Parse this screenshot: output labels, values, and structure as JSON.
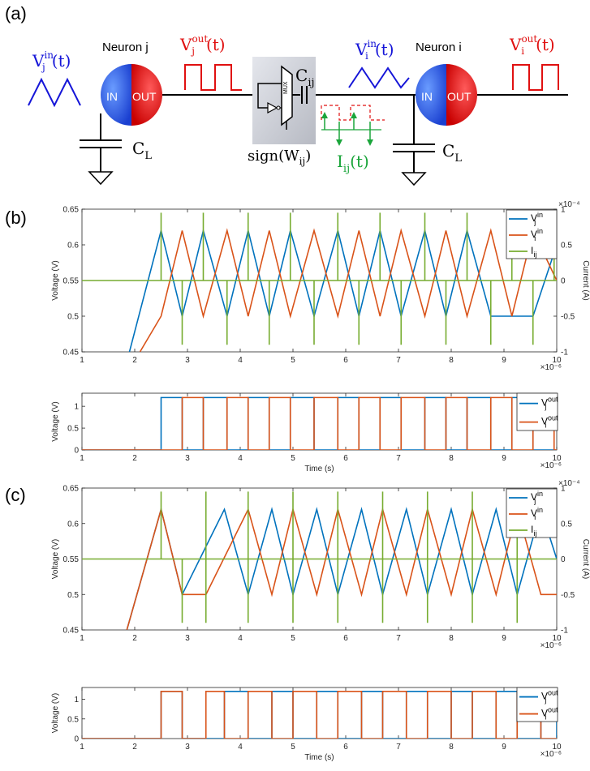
{
  "labels": {
    "a": "(a)",
    "b": "(b)",
    "c": "(c)"
  },
  "circuit": {
    "neuron_j": "Neuron j",
    "neuron_i": "Neuron i",
    "in_text": "IN",
    "out_text": "OUT",
    "mux_text": "MUX",
    "vj_in": {
      "base": "V",
      "sub": "j",
      "sup": "in",
      "arg": "(t)"
    },
    "vj_out": {
      "base": "V",
      "sub": "j",
      "sup": "out",
      "arg": "(t)"
    },
    "vi_in": {
      "base": "V",
      "sub": "i",
      "sup": "in",
      "arg": "(t)"
    },
    "vi_out": {
      "base": "V",
      "sub": "i",
      "sup": "out",
      "arg": "(t)"
    },
    "cij": {
      "base": "C",
      "sub": "ij"
    },
    "cl_left": {
      "base": "C",
      "sub": "L"
    },
    "cl_right": {
      "base": "C",
      "sub": "L"
    },
    "sign": {
      "text": "sign(W",
      "sub": "ij",
      "close": ")"
    },
    "iij": {
      "base": "I",
      "sub": "ij",
      "arg": "(t)"
    },
    "colors": {
      "blue": "#1515d8",
      "red": "#e01010",
      "green": "#1aa53a"
    }
  },
  "chart_data": [
    {
      "panel": "b-top",
      "type": "line",
      "ylabel": "Voltage (V)",
      "y2label": "Current (A)",
      "xlim": [
        1,
        10
      ],
      "ylim": [
        0.45,
        0.65
      ],
      "y2lim": [
        -1,
        1
      ],
      "x_ticks": [
        "1",
        "2",
        "3",
        "4",
        "5",
        "6",
        "7",
        "8",
        "9",
        "10"
      ],
      "y_ticks": [
        "0.45",
        "0.5",
        "0.55",
        "0.6",
        "0.65"
      ],
      "y2_ticks": [
        "-1",
        "-0.5",
        "0",
        "0.5",
        "1"
      ],
      "x_exponent": "×10⁻⁶",
      "y2_exponent": "×10⁻⁴",
      "legend": [
        "V_j^in",
        "V_i^in",
        "I_ij"
      ],
      "series": [
        {
          "name": "V_j^in",
          "color": "#0072BD",
          "peaks": [
            2.5,
            3.3,
            4.15,
            4.95,
            5.85,
            6.65,
            7.5,
            8.3
          ],
          "troughs": [
            2.9,
            3.75,
            4.55,
            5.4,
            6.25,
            7.05,
            7.9,
            8.75,
            9.55
          ],
          "start": [
            1.9,
            0.45
          ],
          "end": [
            10.0,
            0.6
          ]
        },
        {
          "name": "V_i^in",
          "color": "#D95319",
          "peaks": [
            2.9,
            3.75,
            4.55,
            5.4,
            6.25,
            7.05,
            7.9,
            8.75,
            9.55
          ],
          "troughs": [
            2.5,
            3.3,
            4.15,
            4.95,
            5.85,
            6.65,
            7.5,
            8.3,
            9.15
          ],
          "start": [
            2.1,
            0.45
          ],
          "end": [
            10.0,
            0.55
          ]
        },
        {
          "name": "I_ij",
          "color": "#77AC30",
          "pulse_up": [
            2.5,
            3.3,
            4.15,
            4.95,
            5.85,
            6.65,
            7.5,
            8.3,
            9.15,
            9.95
          ],
          "pulse_down": [
            2.9,
            3.75,
            4.55,
            5.4,
            6.25,
            7.05,
            7.9,
            8.75,
            9.55
          ],
          "up_value": 0.95,
          "down_value": -0.9,
          "baseline": 0
        }
      ]
    },
    {
      "panel": "b-bottom",
      "type": "line",
      "ylabel": "Voltage (V)",
      "xlabel": "Time (s)",
      "xlim": [
        1,
        10
      ],
      "ylim": [
        0,
        1.3
      ],
      "x_ticks": [
        "1",
        "2",
        "3",
        "4",
        "5",
        "6",
        "7",
        "8",
        "9",
        "10"
      ],
      "y_ticks": [
        "0",
        "0.5",
        "1"
      ],
      "x_exponent": "×10⁻⁶",
      "legend": [
        "V_j^out",
        "V_i^out"
      ],
      "series": [
        {
          "name": "V_j^out",
          "color": "#0072BD",
          "high": 1.2,
          "pulses": [
            [
              2.5,
              2.9
            ],
            [
              3.3,
              3.75
            ],
            [
              4.15,
              4.55
            ],
            [
              4.95,
              5.4
            ],
            [
              5.85,
              6.25
            ],
            [
              6.65,
              7.05
            ],
            [
              7.5,
              7.9
            ],
            [
              8.3,
              8.75
            ],
            [
              9.15,
              9.55
            ]
          ]
        },
        {
          "name": "V_i^out",
          "color": "#D95319",
          "high": 1.2,
          "pulses": [
            [
              2.9,
              3.3
            ],
            [
              3.75,
              4.15
            ],
            [
              4.55,
              4.95
            ],
            [
              5.4,
              5.85
            ],
            [
              6.25,
              6.65
            ],
            [
              7.05,
              7.5
            ],
            [
              7.9,
              8.3
            ],
            [
              8.75,
              9.15
            ],
            [
              9.55,
              9.95
            ]
          ]
        }
      ]
    },
    {
      "panel": "c-top",
      "type": "line",
      "ylabel": "Voltage (V)",
      "y2label": "Current (A)",
      "xlim": [
        1,
        10
      ],
      "ylim": [
        0.45,
        0.65
      ],
      "y2lim": [
        -1,
        1
      ],
      "x_ticks": [
        "1",
        "2",
        "3",
        "4",
        "5",
        "6",
        "7",
        "8",
        "9",
        "10"
      ],
      "y_ticks": [
        "0.45",
        "0.5",
        "0.55",
        "0.6",
        "0.65"
      ],
      "y2_ticks": [
        "-1",
        "-0.5",
        "0",
        "0.5",
        "1"
      ],
      "x_exponent": "×10⁻⁶",
      "y2_exponent": "×10⁻⁴",
      "legend": [
        "V_j^in",
        "V_i^in",
        "I_ij"
      ],
      "series": [
        {
          "name": "V_j^in",
          "color": "#0072BD",
          "peaks": [
            2.5,
            3.7,
            4.6,
            5.45,
            6.3,
            7.15,
            8.0,
            8.85,
            9.7
          ],
          "troughs": [
            2.9,
            4.15,
            5.0,
            5.85,
            6.7,
            7.55,
            8.4,
            9.25
          ],
          "start": [
            1.85,
            0.45
          ],
          "end": [
            10.0,
            0.55
          ]
        },
        {
          "name": "V_i^in",
          "color": "#D95319",
          "peaks": [
            2.5,
            4.15,
            5.0,
            5.85,
            6.7,
            7.55,
            8.4,
            9.25
          ],
          "troughs": [
            2.9,
            3.35,
            4.6,
            5.45,
            6.3,
            7.15,
            8.0,
            8.85,
            9.7
          ],
          "start": [
            1.85,
            0.45
          ],
          "end": [
            10.0,
            0.5
          ]
        },
        {
          "name": "I_ij",
          "color": "#77AC30",
          "pulse_up": [
            2.5,
            3.35,
            4.15,
            5.0,
            5.85,
            6.7,
            7.55,
            8.4,
            9.25
          ],
          "pulse_down": [
            2.9,
            3.35,
            4.15,
            5.0,
            5.85,
            6.7,
            7.55,
            8.4,
            9.25
          ],
          "up_value": 0.95,
          "down_value": -0.9,
          "baseline": 0
        }
      ]
    },
    {
      "panel": "c-bottom",
      "type": "line",
      "ylabel": "Voltage (V)",
      "xlabel": "Time (s)",
      "xlim": [
        1,
        10
      ],
      "ylim": [
        0,
        1.3
      ],
      "x_ticks": [
        "1",
        "2",
        "3",
        "4",
        "5",
        "6",
        "7",
        "8",
        "9",
        "10"
      ],
      "y_ticks": [
        "0",
        "0.5",
        "1"
      ],
      "x_exponent": "×10⁻⁶",
      "legend": [
        "V_j^out",
        "V_i^out"
      ],
      "series": [
        {
          "name": "V_j^out",
          "color": "#0072BD",
          "high": 1.2,
          "pulses": [
            [
              2.5,
              2.9
            ],
            [
              3.7,
              4.15
            ],
            [
              4.6,
              5.0
            ],
            [
              5.45,
              5.85
            ],
            [
              6.3,
              6.7
            ],
            [
              7.15,
              7.55
            ],
            [
              8.0,
              8.4
            ],
            [
              8.85,
              9.25
            ],
            [
              9.7,
              10.0
            ]
          ]
        },
        {
          "name": "V_i^out",
          "color": "#D95319",
          "high": 1.2,
          "pulses": [
            [
              2.5,
              2.9
            ],
            [
              3.35,
              3.7
            ],
            [
              4.15,
              4.6
            ],
            [
              5.0,
              5.45
            ],
            [
              5.85,
              6.3
            ],
            [
              6.7,
              7.15
            ],
            [
              7.55,
              8.0
            ],
            [
              8.4,
              8.85
            ],
            [
              9.25,
              9.7
            ]
          ]
        }
      ]
    }
  ]
}
